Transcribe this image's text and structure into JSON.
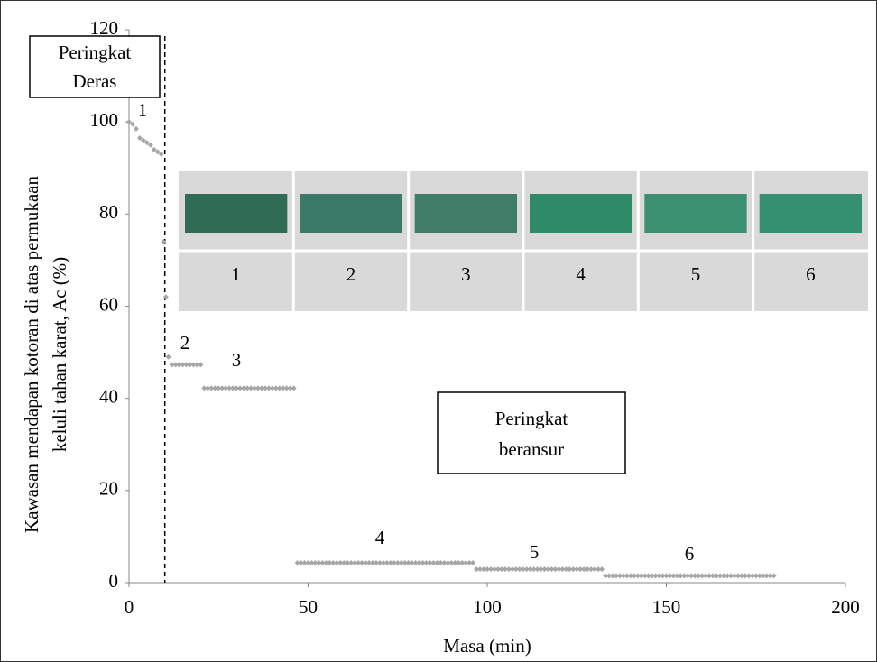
{
  "chart_data": {
    "type": "scatter",
    "x_label": "Masa (min)",
    "y_label_lines": [
      "Kawasan mendapan kotoran di atas permukaan",
      "keluli tahan karat, Ac (%)"
    ],
    "color": "#a6a6a6",
    "xlim": [
      0,
      200
    ],
    "xticks": [
      0,
      50,
      100,
      150,
      200
    ],
    "ylim": [
      0,
      120
    ],
    "yticks": [
      0,
      20,
      40,
      60,
      80,
      100,
      120
    ],
    "grid": false,
    "divider_x": 10,
    "x": [
      0,
      1,
      2,
      3,
      4,
      5,
      6,
      7,
      8,
      9,
      9.6,
      10.3,
      11,
      12,
      13,
      14,
      15,
      16,
      17,
      18,
      19,
      20,
      21,
      22,
      23,
      24,
      25,
      26,
      27,
      28,
      29,
      30,
      31,
      32,
      33,
      34,
      35,
      36,
      37,
      38,
      39,
      40,
      41,
      42,
      43,
      44,
      45,
      46,
      47,
      48,
      49,
      50,
      51,
      52,
      53,
      54,
      55,
      56,
      57,
      58,
      59,
      60,
      61,
      62,
      63,
      64,
      65,
      66,
      67,
      68,
      69,
      70,
      71,
      72,
      73,
      74,
      75,
      76,
      77,
      78,
      79,
      80,
      81,
      82,
      83,
      84,
      85,
      86,
      87,
      88,
      89,
      90,
      91,
      92,
      93,
      94,
      95,
      96,
      97,
      98,
      99,
      100,
      101,
      102,
      103,
      104,
      105,
      106,
      107,
      108,
      109,
      110,
      111,
      112,
      113,
      114,
      115,
      116,
      117,
      118,
      119,
      120,
      121,
      122,
      123,
      124,
      125,
      126,
      127,
      128,
      129,
      130,
      131,
      132,
      133,
      134,
      135,
      136,
      137,
      138,
      139,
      140,
      141,
      142,
      143,
      144,
      145,
      146,
      147,
      148,
      149,
      150,
      151,
      152,
      153,
      154,
      155,
      156,
      157,
      158,
      159,
      160,
      161,
      162,
      163,
      164,
      165,
      166,
      167,
      168,
      169,
      170,
      171,
      172,
      173,
      174,
      175,
      176,
      177,
      178,
      179,
      180
    ],
    "values": [
      100,
      99.5,
      98.5,
      96.5,
      96,
      95.5,
      95,
      94,
      93.5,
      93,
      74,
      62,
      49,
      47.3,
      47.3,
      47.3,
      47.3,
      47.3,
      47.3,
      47.3,
      47.3,
      47.3,
      42.2,
      42.2,
      42.2,
      42.2,
      42.2,
      42.2,
      42.2,
      42.2,
      42.2,
      42.2,
      42.2,
      42.2,
      42.2,
      42.2,
      42.2,
      42.2,
      42.2,
      42.2,
      42.2,
      42.2,
      42.2,
      42.2,
      42.2,
      42.2,
      42.2,
      42.2,
      4.3,
      4.3,
      4.3,
      4.3,
      4.3,
      4.3,
      4.3,
      4.3,
      4.3,
      4.3,
      4.3,
      4.3,
      4.3,
      4.3,
      4.3,
      4.3,
      4.3,
      4.3,
      4.3,
      4.3,
      4.3,
      4.3,
      4.3,
      4.3,
      4.3,
      4.3,
      4.3,
      4.3,
      4.3,
      4.3,
      4.3,
      4.3,
      4.3,
      4.3,
      4.3,
      4.3,
      4.3,
      4.3,
      4.3,
      4.3,
      4.3,
      4.3,
      4.3,
      4.3,
      4.3,
      4.3,
      4.3,
      4.3,
      4.3,
      4.3,
      2.9,
      2.9,
      2.9,
      2.9,
      2.9,
      2.9,
      2.9,
      2.9,
      2.9,
      2.9,
      2.9,
      2.9,
      2.9,
      2.9,
      2.9,
      2.9,
      2.9,
      2.9,
      2.9,
      2.9,
      2.9,
      2.9,
      2.9,
      2.9,
      2.9,
      2.9,
      2.9,
      2.9,
      2.9,
      2.9,
      2.9,
      2.9,
      2.9,
      2.9,
      2.9,
      2.9,
      1.5,
      1.5,
      1.5,
      1.5,
      1.5,
      1.5,
      1.5,
      1.5,
      1.5,
      1.5,
      1.5,
      1.5,
      1.5,
      1.5,
      1.5,
      1.5,
      1.5,
      1.5,
      1.5,
      1.5,
      1.5,
      1.5,
      1.5,
      1.5,
      1.5,
      1.5,
      1.5,
      1.5,
      1.5,
      1.5,
      1.5,
      1.5,
      1.5,
      1.5,
      1.5,
      1.5,
      1.5,
      1.5,
      1.5,
      1.5,
      1.5,
      1.5,
      1.5,
      1.5,
      1.5,
      1.5,
      1.5,
      1.5
    ],
    "stage_labels": [
      "1",
      "2",
      "3",
      "4",
      "5",
      "6"
    ],
    "box_deras": [
      "Peringkat",
      "Deras"
    ],
    "box_beransur": [
      "Peringkat",
      "beransur"
    ],
    "image_panel_labels": [
      "1",
      "2",
      "3",
      "4",
      "5",
      "6"
    ]
  }
}
